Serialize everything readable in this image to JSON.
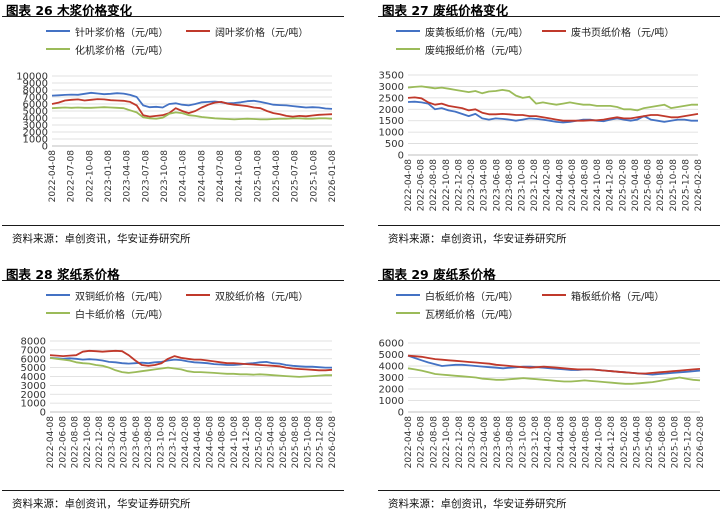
{
  "source_label": "资料来源：卓创资讯，华安证券研究所",
  "chart_data": [
    {
      "type": "line",
      "title": "图表 26 木浆价格变化",
      "ylim": [
        0,
        10000
      ],
      "yticks": [
        0,
        1000,
        2000,
        3000,
        4000,
        5000,
        6000,
        7000,
        8000,
        9000,
        10000
      ],
      "x_labels": [
        "2022-04-08",
        "2022-07-08",
        "2022-10-08",
        "2023-01-08",
        "2023-04-08",
        "2023-07-08",
        "2023-10-08",
        "2024-01-08",
        "2024-04-08",
        "2024-07-08",
        "2024-10-08",
        "2025-01-08",
        "2025-04-08",
        "2025-07-08",
        "2025-10-08",
        "2026-01-08"
      ],
      "grid": "horizontal",
      "legend_position": "top",
      "series": [
        {
          "name": "针叶浆价格（元/吨）",
          "color": "#4472C4",
          "values": [
            7200,
            7250,
            7300,
            7350,
            7320,
            7450,
            7600,
            7500,
            7400,
            7450,
            7550,
            7480,
            7300,
            7000,
            5800,
            5550,
            5600,
            5500,
            6000,
            6100,
            5900,
            5800,
            6000,
            6250,
            6300,
            6350,
            6250,
            6100,
            6150,
            6250,
            6400,
            6450,
            6300,
            6100,
            5900,
            5850,
            5800,
            5700,
            5600,
            5500,
            5550,
            5500,
            5350,
            5300
          ]
        },
        {
          "name": "阔叶浆价格（元/吨）",
          "color": "#C0392B",
          "values": [
            6000,
            6200,
            6500,
            6600,
            6650,
            6500,
            6600,
            6700,
            6650,
            6550,
            6500,
            6450,
            6300,
            5800,
            4400,
            4200,
            4300,
            4400,
            4700,
            5400,
            5000,
            4700,
            5000,
            5500,
            5900,
            6200,
            6300,
            6050,
            5900,
            5800,
            5700,
            5500,
            5400,
            5000,
            4700,
            4550,
            4300,
            4200,
            4300,
            4250,
            4350,
            4450,
            4500,
            4550
          ]
        },
        {
          "name": "化机浆价格（元/吨）",
          "color": "#9BBB59",
          "values": [
            5400,
            5450,
            5500,
            5450,
            5500,
            5450,
            5450,
            5500,
            5550,
            5500,
            5450,
            5400,
            5100,
            4800,
            4100,
            3950,
            3900,
            4050,
            4600,
            4800,
            4700,
            4400,
            4300,
            4150,
            4050,
            3950,
            3900,
            3850,
            3800,
            3850,
            3900,
            3850,
            3800,
            3800,
            3850,
            3900,
            3900,
            3950,
            3950,
            3900,
            3900,
            3950,
            3950,
            3900
          ]
        }
      ]
    },
    {
      "type": "line",
      "title": "图表 27 废纸价格变化",
      "ylim": [
        0,
        3500
      ],
      "yticks": [
        0,
        500,
        1000,
        1500,
        2000,
        2500,
        3000,
        3500
      ],
      "x_labels": [
        "2022-04-08",
        "2022-06-08",
        "2022-08-08",
        "2022-10-08",
        "2022-12-08",
        "2023-02-08",
        "2023-04-08",
        "2023-06-08",
        "2023-08-08",
        "2023-10-08",
        "2023-12-08",
        "2024-02-08",
        "2024-04-08",
        "2024-06-08",
        "2024-08-08",
        "2024-10-08",
        "2024-12-08",
        "2025-02-08",
        "2025-04-08",
        "2025-06-08",
        "2025-08-08",
        "2025-10-08",
        "2025-12-08",
        "2026-02-08"
      ],
      "grid": "horizontal",
      "legend_position": "top",
      "series": [
        {
          "name": "废黄板纸价格（元/吨）",
          "color": "#4472C4",
          "values": [
            2320,
            2330,
            2300,
            2250,
            2000,
            2050,
            1950,
            1900,
            1800,
            1700,
            1800,
            1600,
            1550,
            1600,
            1580,
            1550,
            1500,
            1550,
            1600,
            1580,
            1550,
            1500,
            1450,
            1420,
            1450,
            1500,
            1550,
            1550,
            1500,
            1480,
            1550,
            1600,
            1550,
            1500,
            1550,
            1700,
            1550,
            1500,
            1450,
            1500,
            1550,
            1550,
            1500,
            1500
          ]
        },
        {
          "name": "废书页纸价格（元/吨）",
          "color": "#C0392B",
          "values": [
            2500,
            2520,
            2480,
            2300,
            2200,
            2250,
            2150,
            2100,
            2050,
            1950,
            2000,
            1850,
            1780,
            1780,
            1800,
            1780,
            1750,
            1750,
            1700,
            1700,
            1650,
            1600,
            1550,
            1500,
            1500,
            1500,
            1500,
            1520,
            1520,
            1550,
            1600,
            1650,
            1600,
            1600,
            1650,
            1700,
            1750,
            1750,
            1700,
            1650,
            1650,
            1700,
            1750,
            1800
          ]
        },
        {
          "name": "废纯报纸价格（元/吨）",
          "color": "#9BBB59",
          "values": [
            2950,
            2980,
            3000,
            2960,
            2920,
            2950,
            2900,
            2850,
            2800,
            2750,
            2800,
            2700,
            2780,
            2800,
            2850,
            2800,
            2600,
            2500,
            2550,
            2250,
            2300,
            2250,
            2200,
            2250,
            2300,
            2250,
            2200,
            2200,
            2150,
            2150,
            2150,
            2100,
            2000,
            2000,
            1950,
            2050,
            2100,
            2150,
            2200,
            2050,
            2100,
            2150,
            2200,
            2200
          ]
        }
      ]
    },
    {
      "type": "line",
      "title": "图表 28 浆纸系价格",
      "ylim": [
        0,
        8000
      ],
      "yticks": [
        0,
        1000,
        2000,
        3000,
        4000,
        5000,
        6000,
        7000,
        8000
      ],
      "x_labels": [
        "2022-04-08",
        "2022-06-08",
        "2022-08-08",
        "2022-10-08",
        "2022-12-08",
        "2023-02-08",
        "2023-04-08",
        "2023-06-08",
        "2023-08-08",
        "2023-10-08",
        "2023-12-08",
        "2024-02-08",
        "2024-04-08",
        "2024-06-08",
        "2024-08-08",
        "2024-10-08",
        "2024-12-08",
        "2025-02-08",
        "2025-04-08",
        "2025-06-08",
        "2025-08-08",
        "2025-10-08",
        "2025-12-08",
        "2026-02-08"
      ],
      "grid": "horizontal",
      "legend_position": "top",
      "series": [
        {
          "name": "双铜纸价格（元/吨）",
          "color": "#4472C4",
          "values": [
            6100,
            6050,
            6000,
            6050,
            6000,
            5900,
            5950,
            5900,
            5800,
            5650,
            5600,
            5500,
            5450,
            5500,
            5550,
            5500,
            5600,
            5650,
            5800,
            5900,
            5850,
            5700,
            5600,
            5550,
            5500,
            5400,
            5350,
            5300,
            5300,
            5350,
            5450,
            5500,
            5600,
            5650,
            5500,
            5450,
            5300,
            5200,
            5150,
            5100,
            5100,
            5050,
            5000,
            5000
          ]
        },
        {
          "name": "双胶纸价格（元/吨）",
          "color": "#C0392B",
          "values": [
            6400,
            6350,
            6300,
            6350,
            6400,
            6800,
            6900,
            6850,
            6800,
            6850,
            6900,
            6850,
            6400,
            5800,
            5300,
            5200,
            5300,
            5500,
            6000,
            6300,
            6100,
            6000,
            5900,
            5900,
            5800,
            5700,
            5600,
            5500,
            5500,
            5450,
            5400,
            5350,
            5300,
            5250,
            5200,
            5150,
            5000,
            4900,
            4850,
            4800,
            4750,
            4700,
            4700,
            4750
          ]
        },
        {
          "name": "白卡纸价格（元/吨）",
          "color": "#9BBB59",
          "values": [
            6100,
            6000,
            5900,
            5800,
            5600,
            5500,
            5450,
            5300,
            5200,
            5000,
            4700,
            4500,
            4400,
            4500,
            4600,
            4700,
            4800,
            4900,
            5000,
            4900,
            4800,
            4600,
            4500,
            4500,
            4450,
            4400,
            4350,
            4300,
            4300,
            4250,
            4250,
            4200,
            4250,
            4200,
            4150,
            4100,
            4050,
            4000,
            3950,
            4000,
            4050,
            4100,
            4150,
            4150
          ]
        }
      ]
    },
    {
      "type": "line",
      "title": "图表 29 废纸系价格",
      "ylim": [
        0,
        6000
      ],
      "yticks": [
        0,
        1000,
        2000,
        3000,
        4000,
        5000,
        6000
      ],
      "x_labels": [
        "2022-04-08",
        "2022-06-08",
        "2022-08-08",
        "2022-10-08",
        "2022-12-08",
        "2023-02-08",
        "2023-04-08",
        "2023-06-08",
        "2023-08-08",
        "2023-10-08",
        "2023-12-08",
        "2024-02-08",
        "2024-04-08",
        "2024-06-08",
        "2024-08-08",
        "2024-10-08",
        "2024-12-08",
        "2025-02-08",
        "2025-04-08",
        "2025-06-08",
        "2025-08-08",
        "2025-10-08",
        "2025-12-08",
        "2026-02-08"
      ],
      "grid": "horizontal",
      "legend_position": "top",
      "series": [
        {
          "name": "白板纸价格（元/吨）",
          "color": "#4472C4",
          "values": [
            4900,
            4700,
            4500,
            4300,
            4150,
            4000,
            4050,
            4100,
            4100,
            4050,
            4000,
            3950,
            3900,
            3850,
            3800,
            3850,
            3900,
            3950,
            3950,
            3900,
            3850,
            3800,
            3750,
            3700,
            3650,
            3650,
            3700,
            3700,
            3650,
            3600,
            3550,
            3500,
            3450,
            3400,
            3350,
            3300,
            3250,
            3300,
            3350,
            3400,
            3450,
            3500,
            3550,
            3600
          ]
        },
        {
          "name": "箱板纸价格（元/吨）",
          "color": "#C0392B",
          "values": [
            4900,
            4850,
            4800,
            4700,
            4600,
            4550,
            4500,
            4450,
            4400,
            4350,
            4300,
            4250,
            4200,
            4100,
            4050,
            4000,
            3950,
            3900,
            3850,
            3900,
            3950,
            3900,
            3850,
            3800,
            3750,
            3700,
            3700,
            3700,
            3650,
            3600,
            3550,
            3500,
            3450,
            3400,
            3350,
            3350,
            3400,
            3450,
            3500,
            3550,
            3600,
            3650,
            3700,
            3750
          ]
        },
        {
          "name": "瓦楞纸价格（元/吨）",
          "color": "#9BBB59",
          "values": [
            3800,
            3700,
            3600,
            3450,
            3300,
            3250,
            3200,
            3150,
            3100,
            3050,
            3000,
            2900,
            2850,
            2800,
            2800,
            2850,
            2900,
            2950,
            2900,
            2850,
            2800,
            2750,
            2700,
            2650,
            2650,
            2700,
            2750,
            2700,
            2650,
            2600,
            2550,
            2500,
            2450,
            2450,
            2500,
            2550,
            2600,
            2700,
            2800,
            2900,
            3000,
            2900,
            2800,
            2750
          ]
        }
      ]
    }
  ]
}
